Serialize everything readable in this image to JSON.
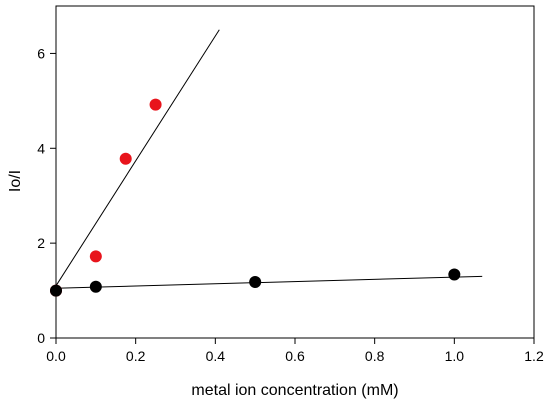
{
  "chart_data": {
    "type": "scatter",
    "title": "",
    "xlabel": "metal ion concentration (mM)",
    "ylabel": "Io/I",
    "xlim": [
      0,
      1.2
    ],
    "ylim": [
      0,
      7
    ],
    "xticks": [
      0.0,
      0.2,
      0.4,
      0.6,
      0.8,
      1.0,
      1.2
    ],
    "xtick_labels": [
      "0.0",
      "0.2",
      "0.4",
      "0.6",
      "0.8",
      "1.0",
      "1.2"
    ],
    "yticks": [
      0,
      2,
      4,
      6
    ],
    "ytick_labels": [
      "0",
      "2",
      "4",
      "6"
    ],
    "grid": false,
    "legend": "none",
    "series": [
      {
        "color": "#e8141c",
        "x": [
          0.0,
          0.1,
          0.175,
          0.25
        ],
        "y": [
          1.0,
          1.72,
          3.78,
          4.92
        ],
        "fit_line": {
          "x": [
            0.0,
            0.41
          ],
          "y": [
            1.1,
            6.5
          ]
        }
      },
      {
        "color": "#000000",
        "x": [
          0.0,
          0.1,
          0.5,
          1.0
        ],
        "y": [
          1.0,
          1.08,
          1.18,
          1.34
        ],
        "fit_line": {
          "x": [
            0.0,
            1.07
          ],
          "y": [
            1.05,
            1.3
          ]
        }
      }
    ]
  }
}
